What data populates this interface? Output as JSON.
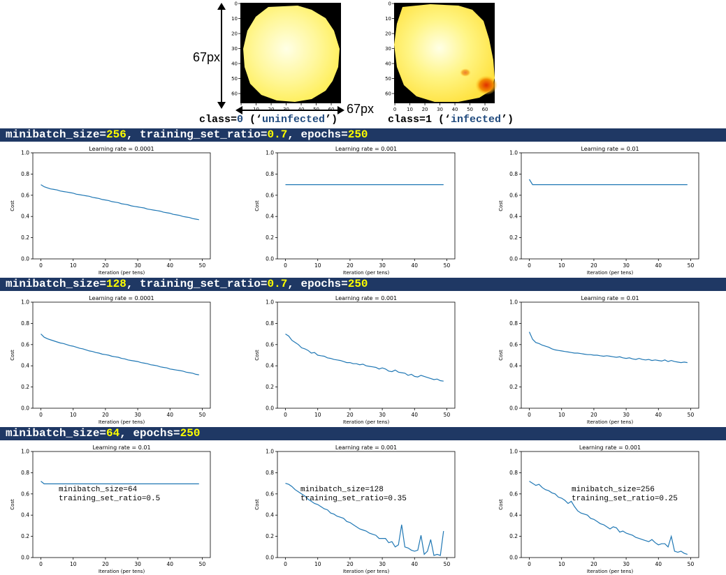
{
  "header": {
    "dim_vertical": "67px",
    "dim_horizontal": "67px",
    "images": [
      {
        "class_prefix": "class=",
        "class_value": "0",
        "class_label_open": " (‘",
        "class_label": "uninfected",
        "class_label_close": "’)",
        "x_ticks": [
          "0",
          "10",
          "20",
          "30",
          "40",
          "50",
          "60"
        ],
        "y_ticks": [
          "0",
          "10",
          "20",
          "30",
          "40",
          "50",
          "60"
        ]
      },
      {
        "class_prefix": "class=",
        "class_value": "1",
        "class_label_open": " (‘",
        "class_label": "infected",
        "class_label_close": "’)",
        "x_ticks": [
          "0",
          "10",
          "20",
          "30",
          "40",
          "50",
          "60"
        ],
        "y_ticks": [
          "0",
          "10",
          "20",
          "30",
          "40",
          "50",
          "60"
        ]
      }
    ]
  },
  "banners": [
    {
      "parts": [
        {
          "t": "minibatch_size=",
          "hl": false
        },
        {
          "t": "256",
          "hl": true
        },
        {
          "t": ", training_set_ratio=",
          "hl": false
        },
        {
          "t": "0.7",
          "hl": true
        },
        {
          "t": ", epochs=",
          "hl": false
        },
        {
          "t": "250",
          "hl": true
        }
      ]
    },
    {
      "parts": [
        {
          "t": "minibatch_size=",
          "hl": false
        },
        {
          "t": "128",
          "hl": true
        },
        {
          "t": ", training_set_ratio=",
          "hl": false
        },
        {
          "t": "0.7",
          "hl": true
        },
        {
          "t": ", epochs=",
          "hl": false
        },
        {
          "t": "250",
          "hl": true
        }
      ]
    },
    {
      "parts": [
        {
          "t": "minibatch_size=",
          "hl": false
        },
        {
          "t": "64",
          "hl": true
        },
        {
          "t": ", epochs=",
          "hl": false
        },
        {
          "t": "250",
          "hl": true
        }
      ]
    }
  ],
  "colors": {
    "banner_bg": "#1f3864",
    "banner_highlight": "#ffff00",
    "line": "#1f77b4",
    "class_value": "#1f497d"
  },
  "chart_data": [
    {
      "type": "line",
      "title": "Learning rate = 0.0001",
      "xlabel": "Iteration (per tens)",
      "ylabel": "Cost",
      "xlim": [
        0,
        50
      ],
      "ylim": [
        0,
        1.0
      ],
      "x_ticks": [
        "0",
        "10",
        "20",
        "30",
        "40",
        "50"
      ],
      "y_ticks": [
        "0.0",
        "0.2",
        "0.4",
        "0.6",
        "0.8",
        "1.0"
      ],
      "annotation": [],
      "series": [
        {
          "values": [
            0.7,
            0.68,
            0.67,
            0.66,
            0.655,
            0.65,
            0.64,
            0.635,
            0.63,
            0.625,
            0.62,
            0.61,
            0.605,
            0.6,
            0.595,
            0.59,
            0.58,
            0.575,
            0.57,
            0.56,
            0.555,
            0.55,
            0.54,
            0.535,
            0.53,
            0.52,
            0.515,
            0.51,
            0.5,
            0.495,
            0.49,
            0.485,
            0.48,
            0.47,
            0.465,
            0.46,
            0.455,
            0.45,
            0.44,
            0.435,
            0.43,
            0.42,
            0.415,
            0.41,
            0.4,
            0.395,
            0.39,
            0.38,
            0.375,
            0.37
          ]
        }
      ]
    },
    {
      "type": "line",
      "title": "Learning rate = 0.001",
      "xlabel": "Iteration (per tens)",
      "ylabel": "Cost",
      "xlim": [
        0,
        50
      ],
      "ylim": [
        0,
        1.0
      ],
      "x_ticks": [
        "0",
        "10",
        "20",
        "30",
        "40",
        "50"
      ],
      "y_ticks": [
        "0.0",
        "0.2",
        "0.4",
        "0.6",
        "0.8",
        "1.0"
      ],
      "annotation": [],
      "series": [
        {
          "values": [
            0.7,
            0.7,
            0.7,
            0.7,
            0.7,
            0.7,
            0.7,
            0.7,
            0.7,
            0.7,
            0.7,
            0.7,
            0.7,
            0.7,
            0.7,
            0.7,
            0.7,
            0.7,
            0.7,
            0.7,
            0.7,
            0.7,
            0.7,
            0.7,
            0.7,
            0.7,
            0.7,
            0.7,
            0.7,
            0.7,
            0.7,
            0.7,
            0.7,
            0.7,
            0.7,
            0.7,
            0.7,
            0.7,
            0.7,
            0.7,
            0.7,
            0.7,
            0.7,
            0.7,
            0.7,
            0.7,
            0.7,
            0.7,
            0.7,
            0.7
          ]
        }
      ]
    },
    {
      "type": "line",
      "title": "Learning rate = 0.01",
      "xlabel": "Iteration (per tens)",
      "ylabel": "Cost",
      "xlim": [
        0,
        50
      ],
      "ylim": [
        0,
        1.0
      ],
      "x_ticks": [
        "0",
        "10",
        "20",
        "30",
        "40",
        "50"
      ],
      "y_ticks": [
        "0.0",
        "0.2",
        "0.4",
        "0.6",
        "0.8",
        "1.0"
      ],
      "annotation": [],
      "series": [
        {
          "values": [
            0.75,
            0.7,
            0.7,
            0.7,
            0.7,
            0.7,
            0.7,
            0.7,
            0.7,
            0.7,
            0.7,
            0.7,
            0.7,
            0.7,
            0.7,
            0.7,
            0.7,
            0.7,
            0.7,
            0.7,
            0.7,
            0.7,
            0.7,
            0.7,
            0.7,
            0.7,
            0.7,
            0.7,
            0.7,
            0.7,
            0.7,
            0.7,
            0.7,
            0.7,
            0.7,
            0.7,
            0.7,
            0.7,
            0.7,
            0.7,
            0.7,
            0.7,
            0.7,
            0.7,
            0.7,
            0.7,
            0.7,
            0.7,
            0.7,
            0.7
          ]
        }
      ]
    },
    {
      "type": "line",
      "title": "Learning rate = 0.0001",
      "xlabel": "Iteration (per tens)",
      "ylabel": "Cost",
      "xlim": [
        0,
        50
      ],
      "ylim": [
        0,
        1.0
      ],
      "x_ticks": [
        "0",
        "10",
        "20",
        "30",
        "40",
        "50"
      ],
      "y_ticks": [
        "0.0",
        "0.2",
        "0.4",
        "0.6",
        "0.8",
        "1.0"
      ],
      "annotation": [],
      "series": [
        {
          "values": [
            0.7,
            0.67,
            0.655,
            0.645,
            0.635,
            0.625,
            0.615,
            0.61,
            0.6,
            0.59,
            0.585,
            0.575,
            0.565,
            0.56,
            0.55,
            0.54,
            0.535,
            0.525,
            0.52,
            0.51,
            0.505,
            0.5,
            0.49,
            0.485,
            0.48,
            0.47,
            0.465,
            0.455,
            0.45,
            0.445,
            0.44,
            0.43,
            0.425,
            0.42,
            0.41,
            0.405,
            0.4,
            0.39,
            0.385,
            0.38,
            0.37,
            0.365,
            0.36,
            0.355,
            0.35,
            0.34,
            0.335,
            0.33,
            0.32,
            0.315
          ]
        }
      ]
    },
    {
      "type": "line",
      "title": "Learning rate = 0.001",
      "xlabel": "Iteration (per tens)",
      "ylabel": "Cost",
      "xlim": [
        0,
        50
      ],
      "ylim": [
        0,
        1.0
      ],
      "x_ticks": [
        "0",
        "10",
        "20",
        "30",
        "40",
        "50"
      ],
      "y_ticks": [
        "0.0",
        "0.2",
        "0.4",
        "0.6",
        "0.8",
        "1.0"
      ],
      "annotation": [],
      "series": [
        {
          "values": [
            0.7,
            0.68,
            0.64,
            0.62,
            0.6,
            0.57,
            0.56,
            0.545,
            0.52,
            0.525,
            0.5,
            0.495,
            0.49,
            0.475,
            0.47,
            0.46,
            0.455,
            0.45,
            0.44,
            0.43,
            0.43,
            0.42,
            0.42,
            0.41,
            0.415,
            0.4,
            0.395,
            0.39,
            0.385,
            0.37,
            0.38,
            0.37,
            0.35,
            0.345,
            0.36,
            0.34,
            0.335,
            0.33,
            0.31,
            0.32,
            0.3,
            0.295,
            0.31,
            0.3,
            0.29,
            0.28,
            0.27,
            0.275,
            0.26,
            0.255
          ]
        }
      ]
    },
    {
      "type": "line",
      "title": "Learning rate = 0.01",
      "xlabel": "Iteration (per tens)",
      "ylabel": "Cost",
      "xlim": [
        0,
        50
      ],
      "ylim": [
        0,
        1.0
      ],
      "x_ticks": [
        "0",
        "10",
        "20",
        "30",
        "40",
        "50"
      ],
      "y_ticks": [
        "0.0",
        "0.2",
        "0.4",
        "0.6",
        "0.8",
        "1.0"
      ],
      "annotation": [],
      "series": [
        {
          "values": [
            0.72,
            0.65,
            0.62,
            0.61,
            0.595,
            0.585,
            0.575,
            0.56,
            0.55,
            0.545,
            0.54,
            0.535,
            0.53,
            0.525,
            0.52,
            0.52,
            0.515,
            0.51,
            0.505,
            0.505,
            0.5,
            0.5,
            0.495,
            0.49,
            0.495,
            0.49,
            0.485,
            0.48,
            0.485,
            0.475,
            0.47,
            0.475,
            0.465,
            0.46,
            0.47,
            0.46,
            0.455,
            0.46,
            0.45,
            0.455,
            0.45,
            0.445,
            0.455,
            0.44,
            0.45,
            0.44,
            0.435,
            0.43,
            0.435,
            0.43
          ]
        }
      ]
    },
    {
      "type": "line",
      "title": "Learning rate = 0.01",
      "xlabel": "Iteration (per tens)",
      "ylabel": "Cost",
      "xlim": [
        0,
        50
      ],
      "ylim": [
        0,
        1.0
      ],
      "x_ticks": [
        "0",
        "10",
        "20",
        "30",
        "40",
        "50"
      ],
      "y_ticks": [
        "0.0",
        "0.2",
        "0.4",
        "0.6",
        "0.8",
        "1.0"
      ],
      "annotation": [
        "minibatch_size=64",
        "training_set_ratio=0.5"
      ],
      "series": [
        {
          "values": [
            0.72,
            0.695,
            0.695,
            0.695,
            0.695,
            0.695,
            0.695,
            0.695,
            0.695,
            0.695,
            0.695,
            0.695,
            0.695,
            0.695,
            0.695,
            0.695,
            0.695,
            0.695,
            0.695,
            0.695,
            0.695,
            0.695,
            0.695,
            0.695,
            0.695,
            0.695,
            0.695,
            0.695,
            0.695,
            0.695,
            0.695,
            0.695,
            0.695,
            0.695,
            0.695,
            0.695,
            0.695,
            0.695,
            0.695,
            0.695,
            0.695,
            0.695,
            0.695,
            0.695,
            0.695,
            0.695,
            0.695,
            0.695,
            0.695,
            0.695
          ]
        }
      ]
    },
    {
      "type": "line",
      "title": "Learning rate = 0.001",
      "xlabel": "Iteration (per tens)",
      "ylabel": "Cost",
      "xlim": [
        0,
        50
      ],
      "ylim": [
        0,
        1.0
      ],
      "x_ticks": [
        "0",
        "10",
        "20",
        "30",
        "40",
        "50"
      ],
      "y_ticks": [
        "0.0",
        "0.2",
        "0.4",
        "0.6",
        "0.8",
        "1.0"
      ],
      "annotation": [
        "minibatch_size=128",
        "training_set_ratio=0.35"
      ],
      "series": [
        {
          "values": [
            0.7,
            0.69,
            0.67,
            0.64,
            0.62,
            0.6,
            0.58,
            0.55,
            0.53,
            0.51,
            0.5,
            0.48,
            0.46,
            0.45,
            0.42,
            0.41,
            0.39,
            0.38,
            0.37,
            0.34,
            0.33,
            0.31,
            0.29,
            0.27,
            0.26,
            0.25,
            0.23,
            0.22,
            0.21,
            0.18,
            0.18,
            0.18,
            0.14,
            0.15,
            0.1,
            0.12,
            0.31,
            0.1,
            0.09,
            0.07,
            0.06,
            0.07,
            0.21,
            0.03,
            0.06,
            0.17,
            0.02,
            0.03,
            0.02,
            0.25
          ]
        }
      ]
    },
    {
      "type": "line",
      "title": "Learning rate = 0.001",
      "xlabel": "Iteration (per tens)",
      "ylabel": "Cost",
      "xlim": [
        0,
        50
      ],
      "ylim": [
        0,
        1.0
      ],
      "x_ticks": [
        "0",
        "10",
        "20",
        "30",
        "40",
        "50"
      ],
      "y_ticks": [
        "0.0",
        "0.2",
        "0.4",
        "0.6",
        "0.8",
        "1.0"
      ],
      "annotation": [
        "minibatch_size=256",
        "training_set_ratio=0.25"
      ],
      "series": [
        {
          "values": [
            0.72,
            0.7,
            0.68,
            0.69,
            0.66,
            0.64,
            0.63,
            0.61,
            0.6,
            0.57,
            0.56,
            0.54,
            0.51,
            0.53,
            0.48,
            0.44,
            0.42,
            0.41,
            0.4,
            0.37,
            0.36,
            0.34,
            0.32,
            0.31,
            0.29,
            0.27,
            0.29,
            0.28,
            0.24,
            0.25,
            0.23,
            0.22,
            0.21,
            0.19,
            0.18,
            0.17,
            0.16,
            0.15,
            0.17,
            0.14,
            0.12,
            0.13,
            0.13,
            0.1,
            0.2,
            0.06,
            0.05,
            0.06,
            0.04,
            0.03
          ]
        }
      ]
    }
  ]
}
